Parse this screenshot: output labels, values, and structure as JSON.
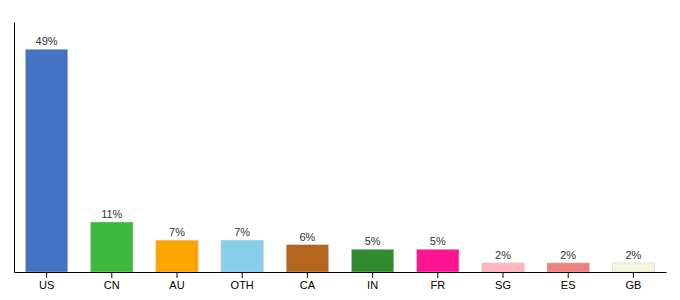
{
  "chart_data": {
    "type": "bar",
    "categories": [
      "US",
      "CN",
      "AU",
      "OTH",
      "CA",
      "IN",
      "FR",
      "SG",
      "ES",
      "GB"
    ],
    "values": [
      49,
      11,
      7,
      7,
      6,
      5,
      5,
      2,
      2,
      2
    ],
    "value_labels": [
      "49%",
      "11%",
      "7%",
      "7%",
      "6%",
      "5%",
      "5%",
      "2%",
      "2%",
      "2%"
    ],
    "colors": [
      "#4472c4",
      "#3dba3d",
      "#ffa500",
      "#87ceeb",
      "#b5651d",
      "#2e8b2e",
      "#ff1493",
      "#ffb6c1",
      "#f08080",
      "#f5f5dc"
    ],
    "ylim": [
      0,
      55
    ],
    "data_labels": true,
    "tick_labels": "x"
  }
}
